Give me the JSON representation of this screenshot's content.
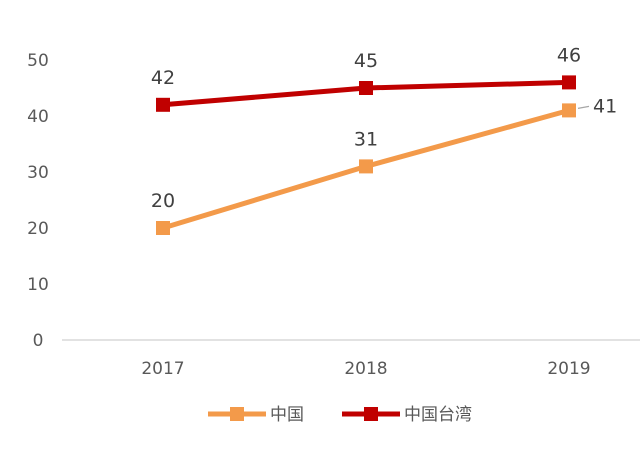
{
  "chart_data": {
    "type": "line",
    "title": "",
    "xlabel": "",
    "ylabel": "",
    "categories": [
      "2017",
      "2018",
      "2019"
    ],
    "ylim": [
      0,
      50
    ],
    "yticks": [
      0,
      10,
      20,
      30,
      40,
      50
    ],
    "grid": false,
    "legend_position": "bottom",
    "data_labels": true,
    "series": [
      {
        "name": "中国",
        "values": [
          20,
          31,
          41
        ],
        "color": "#F39A4A",
        "marker": "square"
      },
      {
        "name": "中国台湾",
        "values": [
          42,
          45,
          46
        ],
        "color": "#C00000",
        "marker": "square"
      }
    ]
  }
}
